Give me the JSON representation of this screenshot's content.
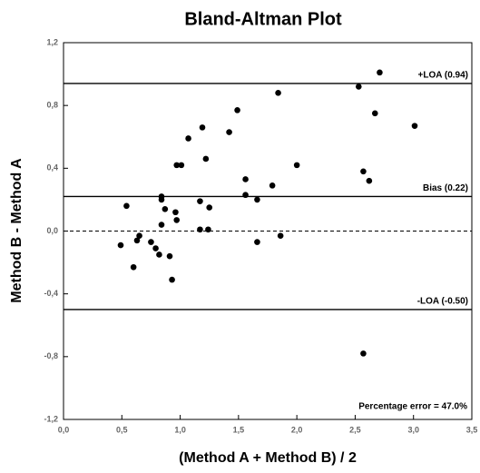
{
  "chart_data": {
    "type": "scatter",
    "title": "Bland-Altman Plot",
    "x_label": "(Method A + Method B) / 2",
    "y_label": "Method B - Method A",
    "color": "#000000",
    "x": [
      0.49,
      0.54,
      0.6,
      0.63,
      0.65,
      0.75,
      0.79,
      0.82,
      0.84,
      0.84,
      0.84,
      0.87,
      0.91,
      0.93,
      0.96,
      0.97,
      0.97,
      1.01,
      1.07,
      1.17,
      1.17,
      1.19,
      1.22,
      1.24,
      1.25,
      1.42,
      1.49,
      1.56,
      1.56,
      1.66,
      1.66,
      1.79,
      1.84,
      1.86,
      2.0,
      2.53,
      2.71,
      2.67,
      3.01,
      2.57,
      2.62,
      2.57
    ],
    "values": [
      -0.09,
      0.16,
      -0.23,
      -0.06,
      -0.03,
      -0.07,
      -0.11,
      -0.15,
      0.22,
      0.2,
      0.04,
      0.14,
      -0.16,
      -0.31,
      0.12,
      0.07,
      0.42,
      0.42,
      0.59,
      0.19,
      0.01,
      0.66,
      0.46,
      0.01,
      0.15,
      0.63,
      0.77,
      0.33,
      0.23,
      0.2,
      -0.07,
      0.29,
      0.88,
      -0.03,
      0.42,
      0.92,
      1.01,
      0.75,
      0.67,
      0.38,
      0.32,
      -0.78
    ],
    "lines": [
      {
        "label": "+LOA (0.94)",
        "value": 0.94
      },
      {
        "label": "Bias (0.22)",
        "value": 0.22
      },
      {
        "label": "-LOA (-0.50)",
        "value": -0.5
      }
    ],
    "reference_line": {
      "value": 0,
      "style": "dashed"
    },
    "annotation": "Percentage error = 47.0%",
    "xlim": [
      0,
      3.5
    ],
    "ylim": [
      -1.2,
      1.2
    ],
    "xticks": [
      {
        "value": 0,
        "label": "0,0"
      },
      {
        "value": 0.5,
        "label": "0,5"
      },
      {
        "value": 1,
        "label": "1,0"
      },
      {
        "value": 1.5,
        "label": "1,5"
      },
      {
        "value": 2,
        "label": "2,0"
      },
      {
        "value": 2.5,
        "label": "2,5"
      },
      {
        "value": 3,
        "label": "3,0"
      },
      {
        "value": 3.5,
        "label": "3,5"
      }
    ],
    "yticks": [
      {
        "value": -1.2,
        "label": "-1,2"
      },
      {
        "value": -0.8,
        "label": "-0,8"
      },
      {
        "value": -0.4,
        "label": "-0,4"
      },
      {
        "value": 0,
        "label": "0,0"
      },
      {
        "value": 0.4,
        "label": "0,4"
      },
      {
        "value": 0.8,
        "label": "0,8"
      },
      {
        "value": 1.2,
        "label": "1,2"
      }
    ]
  }
}
